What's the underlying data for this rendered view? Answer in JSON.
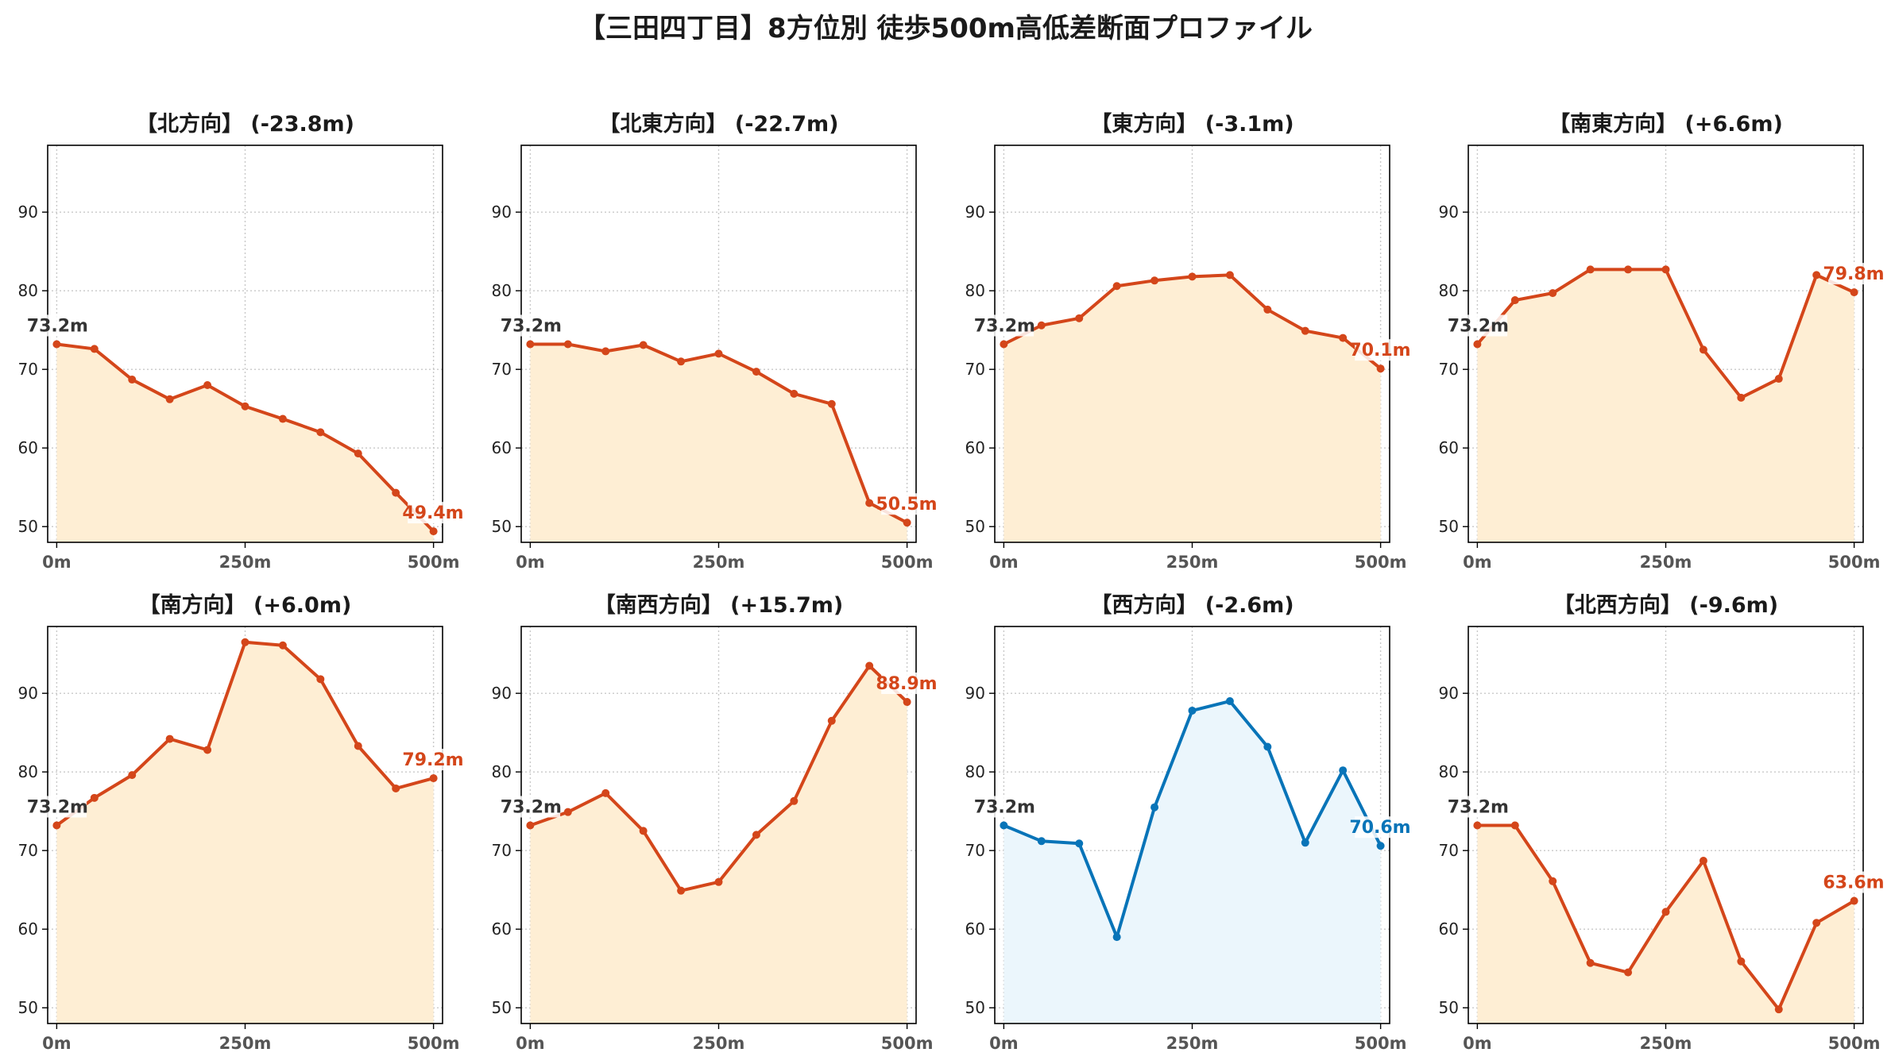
{
  "title": "【三田四丁目】8方位別 徒歩500m高低差断面プロファイル",
  "colors": {
    "rise": "#d4461a",
    "rise_fill": "#feeed4",
    "fall": "#0874b8",
    "fall_fill": "#ebf6fc",
    "start_label": "#333333",
    "grid": "#c8c8c8"
  },
  "chart_data": [
    {
      "type": "area",
      "title": "【北方向】 (-23.8m)",
      "x": [
        0,
        50,
        100,
        150,
        200,
        250,
        300,
        350,
        400,
        450,
        500
      ],
      "values": [
        73.2,
        72.6,
        68.7,
        66.2,
        68.0,
        65.3,
        63.7,
        62.0,
        59.3,
        54.3,
        49.4
      ],
      "start_label": "73.2m",
      "end_label": "49.4m",
      "style": "rise",
      "ylim": [
        48,
        98.5
      ],
      "xlim": [
        -12,
        512
      ],
      "yticks": [
        50,
        60,
        70,
        80,
        90
      ],
      "xticks": [
        0,
        250,
        500
      ],
      "yticklabels": [
        "50",
        "60",
        "70",
        "80",
        "90"
      ],
      "xticklabels": [
        "0m",
        "250m",
        "500m"
      ],
      "grid": true
    },
    {
      "type": "area",
      "title": "【北東方向】 (-22.7m)",
      "x": [
        0,
        50,
        100,
        150,
        200,
        250,
        300,
        350,
        400,
        450,
        500
      ],
      "values": [
        73.2,
        73.2,
        72.3,
        73.1,
        71.0,
        72.0,
        69.7,
        66.9,
        65.6,
        53.0,
        50.5
      ],
      "start_label": "73.2m",
      "end_label": "50.5m",
      "style": "rise",
      "ylim": [
        48,
        98.5
      ],
      "xlim": [
        -12,
        512
      ],
      "yticks": [
        50,
        60,
        70,
        80,
        90
      ],
      "xticks": [
        0,
        250,
        500
      ],
      "yticklabels": [
        "50",
        "60",
        "70",
        "80",
        "90"
      ],
      "xticklabels": [
        "0m",
        "250m",
        "500m"
      ],
      "grid": true
    },
    {
      "type": "area",
      "title": "【東方向】 (-3.1m)",
      "x": [
        0,
        50,
        100,
        150,
        200,
        250,
        300,
        350,
        400,
        450,
        500
      ],
      "values": [
        73.2,
        75.6,
        76.5,
        80.6,
        81.3,
        81.8,
        82.0,
        77.6,
        74.9,
        74.0,
        70.1
      ],
      "start_label": "73.2m",
      "end_label": "70.1m",
      "style": "rise",
      "ylim": [
        48,
        98.5
      ],
      "xlim": [
        -12,
        512
      ],
      "yticks": [
        50,
        60,
        70,
        80,
        90
      ],
      "xticks": [
        0,
        250,
        500
      ],
      "yticklabels": [
        "50",
        "60",
        "70",
        "80",
        "90"
      ],
      "xticklabels": [
        "0m",
        "250m",
        "500m"
      ],
      "grid": true
    },
    {
      "type": "area",
      "title": "【南東方向】 (+6.6m)",
      "x": [
        0,
        50,
        100,
        150,
        200,
        250,
        300,
        350,
        400,
        450,
        500
      ],
      "values": [
        73.2,
        78.8,
        79.7,
        82.7,
        82.7,
        82.7,
        72.5,
        66.4,
        68.8,
        82.0,
        79.8
      ],
      "start_label": "73.2m",
      "end_label": "79.8m",
      "style": "rise",
      "ylim": [
        48,
        98.5
      ],
      "xlim": [
        -12,
        512
      ],
      "yticks": [
        50,
        60,
        70,
        80,
        90
      ],
      "xticks": [
        0,
        250,
        500
      ],
      "yticklabels": [
        "50",
        "60",
        "70",
        "80",
        "90"
      ],
      "xticklabels": [
        "0m",
        "250m",
        "500m"
      ],
      "grid": true
    },
    {
      "type": "area",
      "title": "【南方向】 (+6.0m)",
      "x": [
        0,
        50,
        100,
        150,
        200,
        250,
        300,
        350,
        400,
        450,
        500
      ],
      "values": [
        73.2,
        76.7,
        79.6,
        84.2,
        82.8,
        96.5,
        96.1,
        91.8,
        83.3,
        77.9,
        79.2
      ],
      "start_label": "73.2m",
      "end_label": "79.2m",
      "style": "rise",
      "ylim": [
        48,
        98.5
      ],
      "xlim": [
        -12,
        512
      ],
      "yticks": [
        50,
        60,
        70,
        80,
        90
      ],
      "xticks": [
        0,
        250,
        500
      ],
      "yticklabels": [
        "50",
        "60",
        "70",
        "80",
        "90"
      ],
      "xticklabels": [
        "0m",
        "250m",
        "500m"
      ],
      "grid": true
    },
    {
      "type": "area",
      "title": "【南西方向】 (+15.7m)",
      "x": [
        0,
        50,
        100,
        150,
        200,
        250,
        300,
        350,
        400,
        450,
        500
      ],
      "values": [
        73.2,
        74.9,
        77.3,
        72.5,
        64.9,
        66.0,
        72.0,
        76.3,
        86.5,
        93.5,
        88.9
      ],
      "start_label": "73.2m",
      "end_label": "88.9m",
      "style": "rise",
      "ylim": [
        48,
        98.5
      ],
      "xlim": [
        -12,
        512
      ],
      "yticks": [
        50,
        60,
        70,
        80,
        90
      ],
      "xticks": [
        0,
        250,
        500
      ],
      "yticklabels": [
        "50",
        "60",
        "70",
        "80",
        "90"
      ],
      "xticklabels": [
        "0m",
        "250m",
        "500m"
      ],
      "grid": true
    },
    {
      "type": "area",
      "title": "【西方向】 (-2.6m)",
      "x": [
        0,
        50,
        100,
        150,
        200,
        250,
        300,
        350,
        400,
        450,
        500
      ],
      "values": [
        73.2,
        71.2,
        70.9,
        59.0,
        75.5,
        87.8,
        89.0,
        83.2,
        71.0,
        80.2,
        70.6
      ],
      "start_label": "73.2m",
      "end_label": "70.6m",
      "style": "fall",
      "ylim": [
        48,
        98.5
      ],
      "xlim": [
        -12,
        512
      ],
      "yticks": [
        50,
        60,
        70,
        80,
        90
      ],
      "xticks": [
        0,
        250,
        500
      ],
      "yticklabels": [
        "50",
        "60",
        "70",
        "80",
        "90"
      ],
      "xticklabels": [
        "0m",
        "250m",
        "500m"
      ],
      "grid": true
    },
    {
      "type": "area",
      "title": "【北西方向】 (-9.6m)",
      "x": [
        0,
        50,
        100,
        150,
        200,
        250,
        300,
        350,
        400,
        450,
        500
      ],
      "values": [
        73.2,
        73.2,
        66.1,
        55.7,
        54.5,
        62.2,
        68.7,
        55.9,
        49.8,
        60.8,
        63.6
      ],
      "start_label": "73.2m",
      "end_label": "63.6m",
      "style": "rise",
      "ylim": [
        48,
        98.5
      ],
      "xlim": [
        -12,
        512
      ],
      "yticks": [
        50,
        60,
        70,
        80,
        90
      ],
      "xticks": [
        0,
        250,
        500
      ],
      "yticklabels": [
        "50",
        "60",
        "70",
        "80",
        "90"
      ],
      "xticklabels": [
        "0m",
        "250m",
        "500m"
      ],
      "grid": true
    }
  ]
}
